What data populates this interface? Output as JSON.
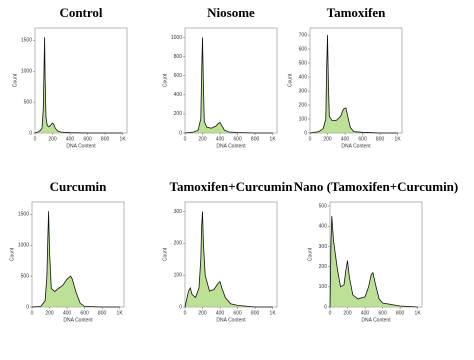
{
  "chart_data": [
    {
      "type": "line",
      "title": "Control",
      "x_label": "DNA Content",
      "y_label": "Count",
      "x": [
        0,
        40,
        60,
        80,
        95,
        105,
        110,
        115,
        125,
        140,
        160,
        180,
        200,
        215,
        230,
        260,
        300,
        400,
        600,
        800,
        1000
      ],
      "values": [
        0,
        20,
        40,
        80,
        400,
        1200,
        1550,
        900,
        250,
        120,
        100,
        130,
        160,
        140,
        80,
        30,
        15,
        5,
        0,
        0,
        0
      ],
      "line_color": "#111111",
      "fill_color": "#9fd36a",
      "xlim": [
        0,
        1050
      ],
      "xticks": [
        0,
        200,
        400,
        600,
        800,
        {
          "value": 1000,
          "label": "1K"
        }
      ],
      "ylim": [
        0,
        1700
      ],
      "yticks": [
        0,
        500,
        1000,
        1500
      ]
    },
    {
      "type": "line",
      "title": "Niosome",
      "x_label": "DNA Content",
      "y_label": "Count",
      "x": [
        0,
        100,
        150,
        180,
        190,
        200,
        210,
        220,
        250,
        300,
        350,
        380,
        400,
        420,
        450,
        500,
        600,
        800,
        1000
      ],
      "values": [
        0,
        10,
        30,
        150,
        600,
        1000,
        500,
        120,
        60,
        50,
        70,
        100,
        110,
        80,
        30,
        10,
        5,
        0,
        0
      ],
      "line_color": "#111111",
      "fill_color": "#9fd36a",
      "xlim": [
        0,
        1050
      ],
      "xticks": [
        0,
        200,
        400,
        600,
        800,
        {
          "value": 1000,
          "label": "1K"
        }
      ],
      "ylim": [
        0,
        1100
      ],
      "yticks": [
        0,
        200,
        400,
        600,
        800,
        1000
      ]
    },
    {
      "type": "line",
      "title": "Tamoxifen",
      "x_label": "DNA Content",
      "y_label": "Count",
      "x": [
        0,
        100,
        150,
        180,
        190,
        200,
        210,
        220,
        250,
        300,
        350,
        380,
        410,
        430,
        460,
        500,
        600,
        800,
        1000
      ],
      "values": [
        0,
        10,
        30,
        100,
        450,
        700,
        350,
        120,
        90,
        90,
        120,
        170,
        180,
        120,
        40,
        10,
        5,
        0,
        0
      ],
      "line_color": "#111111",
      "fill_color": "#9fd36a",
      "xlim": [
        0,
        1050
      ],
      "xticks": [
        0,
        200,
        400,
        600,
        800,
        {
          "value": 1000,
          "label": "1K"
        }
      ],
      "ylim": [
        0,
        750
      ],
      "yticks": [
        0,
        100,
        200,
        300,
        400,
        500,
        600,
        700
      ]
    },
    {
      "type": "line",
      "title": "Curcumin",
      "x_label": "DNA Content",
      "y_label": "Count",
      "x": [
        0,
        100,
        150,
        170,
        180,
        190,
        200,
        220,
        260,
        300,
        350,
        400,
        440,
        460,
        500,
        550,
        600,
        800,
        1000
      ],
      "values": [
        0,
        10,
        100,
        500,
        1100,
        1550,
        900,
        300,
        250,
        300,
        350,
        450,
        500,
        450,
        250,
        60,
        10,
        0,
        0
      ],
      "line_color": "#111111",
      "fill_color": "#9fd36a",
      "xlim": [
        0,
        1050
      ],
      "xticks": [
        0,
        200,
        400,
        600,
        800,
        {
          "value": 1000,
          "label": "1K"
        }
      ],
      "ylim": [
        0,
        1700
      ],
      "yticks": [
        0,
        500,
        1000,
        1500
      ]
    },
    {
      "type": "line",
      "title": "Tamoxifen+Curcumin",
      "x_label": "DNA Content",
      "y_label": "Count",
      "x": [
        0,
        40,
        60,
        80,
        120,
        160,
        180,
        190,
        200,
        210,
        230,
        280,
        330,
        380,
        400,
        420,
        460,
        520,
        600,
        800,
        1000
      ],
      "values": [
        0,
        50,
        60,
        40,
        30,
        60,
        150,
        250,
        300,
        200,
        100,
        50,
        55,
        75,
        80,
        60,
        30,
        10,
        5,
        0,
        0
      ],
      "line_color": "#111111",
      "fill_color": "#9fd36a",
      "xlim": [
        0,
        1050
      ],
      "xticks": [
        0,
        200,
        400,
        600,
        800,
        {
          "value": 1000,
          "label": "1K"
        }
      ],
      "ylim": [
        0,
        330
      ],
      "yticks": [
        0,
        100,
        200,
        300
      ]
    },
    {
      "type": "line",
      "title": "Nano (Tamoxifen+Curcumin)",
      "x_label": "DNA Content",
      "y_label": "Count",
      "x": [
        0,
        10,
        20,
        40,
        80,
        120,
        160,
        180,
        200,
        220,
        260,
        320,
        400,
        440,
        470,
        490,
        520,
        560,
        600,
        800,
        1000
      ],
      "values": [
        0,
        300,
        450,
        330,
        200,
        100,
        110,
        180,
        230,
        150,
        60,
        40,
        50,
        100,
        160,
        170,
        110,
        40,
        20,
        5,
        0
      ],
      "line_color": "#111111",
      "fill_color": "#9fd36a",
      "xlim": [
        0,
        1050
      ],
      "xticks": [
        0,
        200,
        400,
        600,
        800,
        {
          "value": 1000,
          "label": "1K"
        }
      ],
      "ylim": [
        0,
        520
      ],
      "yticks": [
        0,
        100,
        200,
        300,
        400,
        500
      ]
    }
  ]
}
